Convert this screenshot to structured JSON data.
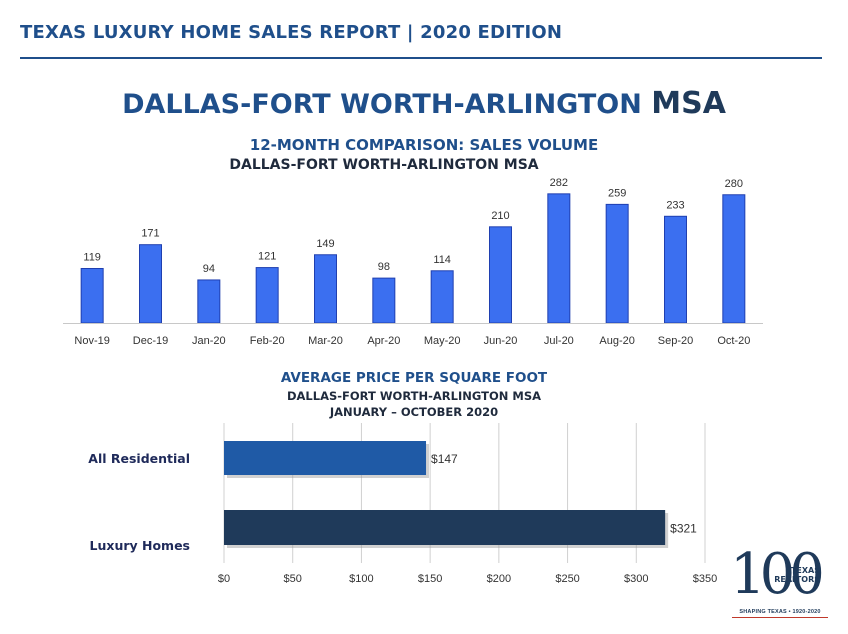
{
  "header": {
    "title": "TEXAS LUXURY HOME SALES REPORT | 2020 EDITION"
  },
  "page_title": {
    "main": "DALLAS-FORT WORTH-ARLINGTON",
    "suffix": "MSA"
  },
  "colors": {
    "header": "#1f4f8b",
    "bar_blue": "#3b6ff0",
    "residential": "#1f5aa6",
    "luxury": "#1f3a5a"
  },
  "chart_data": [
    {
      "type": "bar",
      "title": "12-MONTH COMPARISON: SALES VOLUME",
      "subtitle": "DALLAS-FORT WORTH-ARLINGTON MSA",
      "categories": [
        "Nov-19",
        "Dec-19",
        "Jan-20",
        "Feb-20",
        "Mar-20",
        "Apr-20",
        "May-20",
        "Jun-20",
        "Jul-20",
        "Aug-20",
        "Sep-20",
        "Oct-20"
      ],
      "values": [
        119,
        171,
        94,
        121,
        149,
        98,
        114,
        210,
        282,
        259,
        233,
        280
      ],
      "ylim": [
        0,
        300
      ],
      "grid": false,
      "data_labels": true
    },
    {
      "type": "bar",
      "orientation": "horizontal",
      "title": "AVERAGE PRICE PER SQUARE FOOT",
      "subtitle": "DALLAS-FORT WORTH-ARLINGTON MSA",
      "subtitle2": "JANUARY – OCTOBER 2020",
      "categories": [
        "All Residential",
        "Luxury Homes"
      ],
      "values": [
        147,
        321
      ],
      "value_labels": [
        "$147",
        "$321"
      ],
      "xlim": [
        0,
        350
      ],
      "xticks": [
        0,
        50,
        100,
        150,
        200,
        250,
        300,
        350
      ],
      "xtick_labels": [
        "$0",
        "$50",
        "$100",
        "$150",
        "$200",
        "$250",
        "$300",
        "$350"
      ],
      "grid": true
    }
  ],
  "logo": {
    "number": "100",
    "name_line1": "TEXAS",
    "name_line2": "REALTORS",
    "tagline": "SHAPING TEXAS • 1920-2020"
  }
}
